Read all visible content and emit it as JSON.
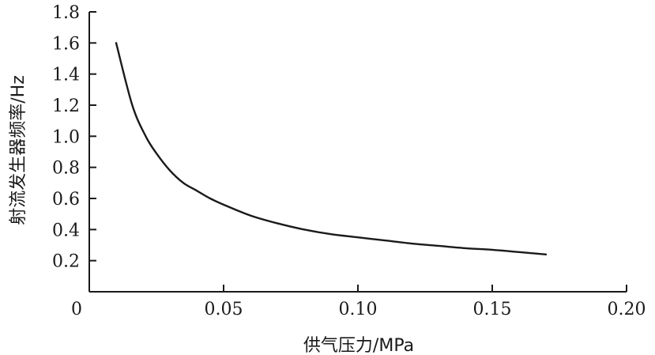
{
  "chart_data": {
    "type": "line",
    "xlabel": "供气压力/MPa",
    "ylabel": "射流发生器频率/Hz",
    "xlim": [
      0,
      0.2
    ],
    "ylim": [
      0,
      1.8
    ],
    "x_ticks": [
      {
        "value": 0,
        "label": "0"
      },
      {
        "value": 0.05,
        "label": "0.05"
      },
      {
        "value": 0.1,
        "label": "0.10"
      },
      {
        "value": 0.15,
        "label": "0.15"
      },
      {
        "value": 0.2,
        "label": "0.20"
      }
    ],
    "y_ticks": [
      {
        "value": 0.2,
        "label": "0.2"
      },
      {
        "value": 0.4,
        "label": "0.4"
      },
      {
        "value": 0.6,
        "label": "0.6"
      },
      {
        "value": 0.8,
        "label": "0.8"
      },
      {
        "value": 1.0,
        "label": "1.0"
      },
      {
        "value": 1.2,
        "label": "1.2"
      },
      {
        "value": 1.4,
        "label": "1.4"
      },
      {
        "value": 1.6,
        "label": "1.6"
      },
      {
        "value": 1.8,
        "label": "1.8"
      }
    ],
    "grid": false,
    "series": [
      {
        "x": [
          0.01,
          0.016,
          0.021,
          0.025,
          0.03,
          0.035,
          0.04,
          0.045,
          0.05,
          0.06,
          0.07,
          0.08,
          0.09,
          0.1,
          0.11,
          0.12,
          0.13,
          0.14,
          0.15,
          0.16,
          0.17
        ],
        "y": [
          1.6,
          1.2,
          1.0,
          0.89,
          0.78,
          0.7,
          0.65,
          0.6,
          0.56,
          0.49,
          0.44,
          0.4,
          0.37,
          0.35,
          0.33,
          0.31,
          0.295,
          0.28,
          0.27,
          0.255,
          0.24
        ]
      }
    ]
  }
}
